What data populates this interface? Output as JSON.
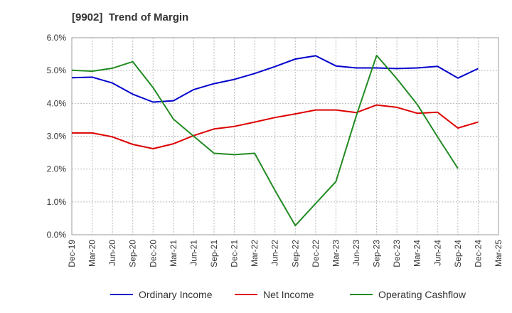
{
  "chart_data": {
    "type": "line",
    "title": "[9902]  Trend of Margin",
    "x": [
      "Dec-19",
      "Mar-20",
      "Jun-20",
      "Sep-20",
      "Dec-20",
      "Mar-21",
      "Jun-21",
      "Sep-21",
      "Dec-21",
      "Mar-22",
      "Jun-22",
      "Sep-22",
      "Dec-22",
      "Mar-23",
      "Jun-23",
      "Sep-23",
      "Dec-23",
      "Mar-24",
      "Jun-24",
      "Sep-24",
      "Dec-24",
      "Mar-25"
    ],
    "ylim": [
      0,
      6
    ],
    "yticks": [
      "0.0%",
      "1.0%",
      "2.0%",
      "3.0%",
      "4.0%",
      "5.0%",
      "6.0%"
    ],
    "grid": "dashed",
    "legend_position": "bottom",
    "series": [
      {
        "name": "Ordinary Income",
        "color": "#0000cc",
        "values": [
          4.78,
          4.8,
          4.62,
          4.28,
          4.04,
          4.08,
          4.42,
          4.6,
          4.73,
          4.91,
          5.12,
          5.35,
          5.45,
          5.14,
          5.08,
          5.08,
          5.06,
          5.08,
          5.13,
          4.77,
          5.06,
          null
        ]
      },
      {
        "name": "Net Income",
        "color": "#dd0000",
        "values": [
          3.1,
          3.1,
          2.98,
          2.75,
          2.62,
          2.77,
          3.02,
          3.22,
          3.3,
          3.43,
          3.57,
          3.68,
          3.8,
          3.8,
          3.72,
          3.95,
          3.88,
          3.7,
          3.73,
          3.25,
          3.43,
          null
        ]
      },
      {
        "name": "Operating Cashflow",
        "color": "#228b22",
        "values": [
          5.01,
          4.98,
          5.07,
          5.27,
          4.48,
          3.52,
          3.0,
          2.48,
          2.44,
          2.48,
          1.35,
          0.28,
          0.95,
          1.62,
          3.62,
          5.46,
          4.75,
          3.97,
          2.98,
          2.02,
          null,
          null
        ]
      }
    ]
  }
}
